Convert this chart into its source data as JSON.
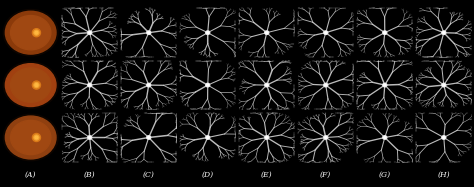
{
  "n_rows": 3,
  "n_cols": 8,
  "labels": [
    "(A)",
    "(B)",
    "(C)",
    "(D)",
    "(E)",
    "(F)",
    "(G)",
    "(H)"
  ],
  "label_fontsize": 5.5,
  "label_color": "white",
  "fig_background": "#000000",
  "cell_background": "#000000",
  "vessel_line_color": "#d0d0d0",
  "vessel_center_color": "#ffffff",
  "figsize": [
    4.74,
    1.87
  ],
  "dpi": 100,
  "fundus_colors": [
    "#8B3A0A",
    "#A04010",
    "#904010"
  ],
  "fundus_disc_color": "#E8901A",
  "fundus_rim_color": "#1a0800"
}
